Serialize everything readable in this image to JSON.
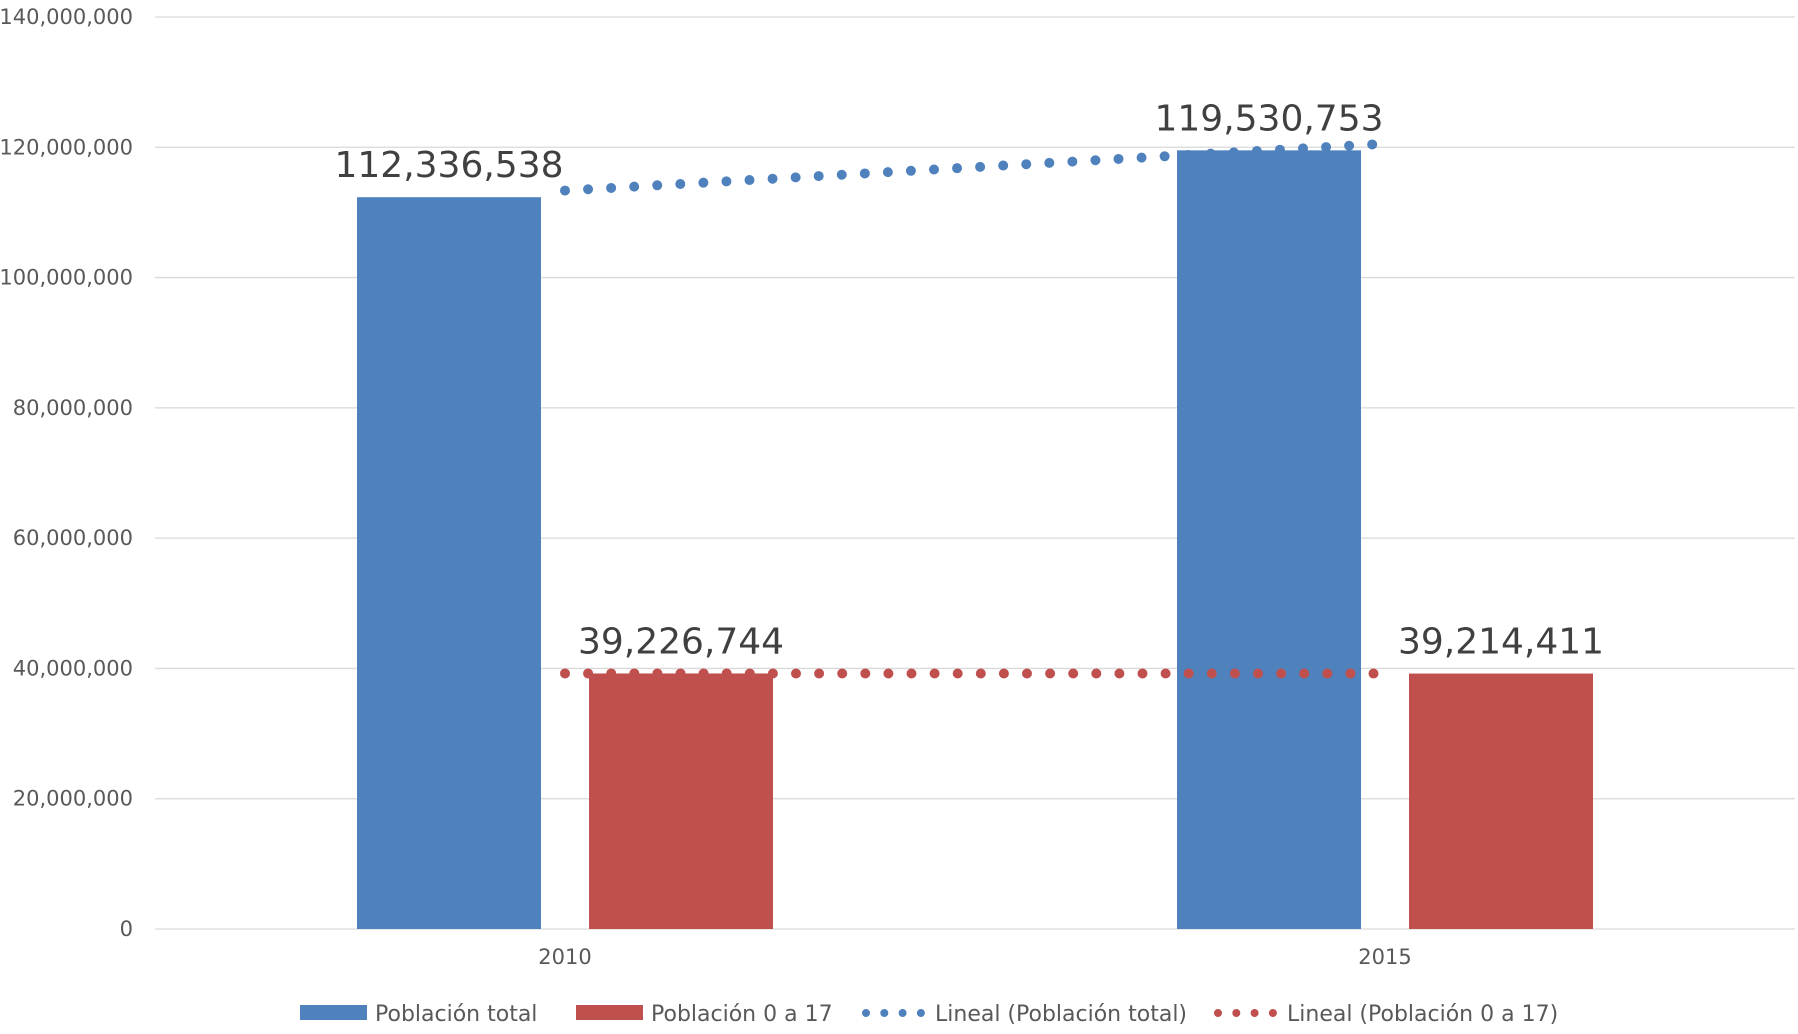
{
  "chart_data": {
    "type": "bar",
    "title": "",
    "xlabel": "",
    "ylabel": "",
    "categories": [
      "2010",
      "2015"
    ],
    "ylim": [
      0,
      140000000
    ],
    "y_ticks": [
      0,
      20000000,
      40000000,
      60000000,
      80000000,
      100000000,
      120000000,
      140000000
    ],
    "y_tick_labels": [
      "0",
      "20,000,000",
      "40,000,000",
      "60,000,000",
      "80,000,000",
      "100,000,000",
      "120,000,000",
      "140,000,000"
    ],
    "grid": true,
    "legend_position": "bottom",
    "series": [
      {
        "name": "Población total",
        "color": "#4F81BD",
        "values": [
          112336538,
          119530753
        ],
        "data_labels": [
          "112,336,538",
          "119,530,753"
        ]
      },
      {
        "name": "Población 0 a 17",
        "color": "#C0504D",
        "values": [
          39226744,
          39214411
        ],
        "data_labels": [
          "39,226,744",
          "39,214,411"
        ]
      }
    ],
    "trendlines": [
      {
        "name": "Lineal (Población total)",
        "type": "linear",
        "of_series": "Población total",
        "color": "#4F81BD",
        "style": "dotted"
      },
      {
        "name": "Lineal (Población 0 a 17)",
        "type": "linear",
        "of_series": "Población 0 a 17",
        "color": "#C0504D",
        "style": "dotted"
      }
    ]
  }
}
